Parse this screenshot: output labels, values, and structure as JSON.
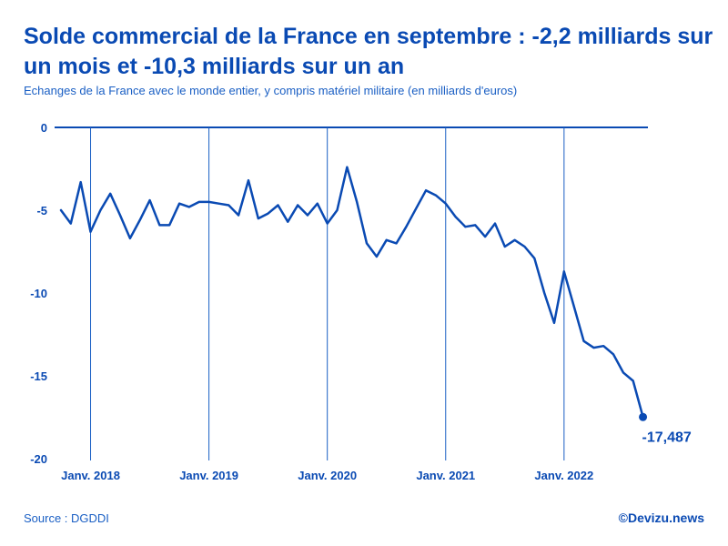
{
  "header": {
    "title": "Solde commercial de la France en septembre : -2,2 milliards sur un mois et -10,3 milliards sur un an",
    "subtitle": "Echanges de la France avec le monde entier, y compris matériel militaire (en milliards d'euros)"
  },
  "footer": {
    "source": "Source : DGDDI",
    "brand": "©Devizu.news"
  },
  "colors": {
    "line": "#0a4ab3",
    "gridline": "#1a5fc4",
    "text": "#0a4ab3"
  },
  "chart_data": {
    "type": "line",
    "title": "Solde commercial de la France en septembre : -2,2 milliards sur un mois et -10,3 milliards sur un an",
    "xlabel": "",
    "ylabel": "milliards d'euros",
    "ylim": [
      -20,
      0
    ],
    "yticks": [
      0,
      -5,
      -10,
      -15,
      -20
    ],
    "ytick_labels": [
      "0",
      "-5",
      "-10",
      "-15",
      "-20"
    ],
    "xticks": [
      {
        "index": 3,
        "label": "Janv. 2018"
      },
      {
        "index": 15,
        "label": "Janv. 2019"
      },
      {
        "index": 27,
        "label": "Janv. 2020"
      },
      {
        "index": 39,
        "label": "Janv. 2021"
      },
      {
        "index": 51,
        "label": "Janv. 2022"
      }
    ],
    "series": [
      {
        "name": "Solde commercial",
        "start": "Octobre 2017",
        "values": [
          -5.0,
          -5.8,
          -3.3,
          -6.3,
          -5.0,
          -4.0,
          -5.3,
          -6.7,
          -5.6,
          -4.4,
          -5.9,
          -5.9,
          -4.6,
          -4.8,
          -4.5,
          -4.5,
          -4.6,
          -4.7,
          -5.3,
          -3.2,
          -5.5,
          -5.2,
          -4.7,
          -5.7,
          -4.7,
          -5.3,
          -4.6,
          -5.8,
          -5.0,
          -2.4,
          -4.5,
          -7.0,
          -7.8,
          -6.8,
          -7.0,
          -6.0,
          -4.9,
          -3.8,
          -4.1,
          -4.6,
          -5.4,
          -6.0,
          -5.9,
          -6.6,
          -5.8,
          -7.2,
          -6.8,
          -7.2,
          -7.9,
          -10.0,
          -11.8,
          -8.7,
          -10.8,
          -12.9,
          -13.3,
          -13.2,
          -13.7,
          -14.8,
          -15.3,
          -17.487
        ]
      }
    ],
    "last_value_label": "-17,487"
  }
}
